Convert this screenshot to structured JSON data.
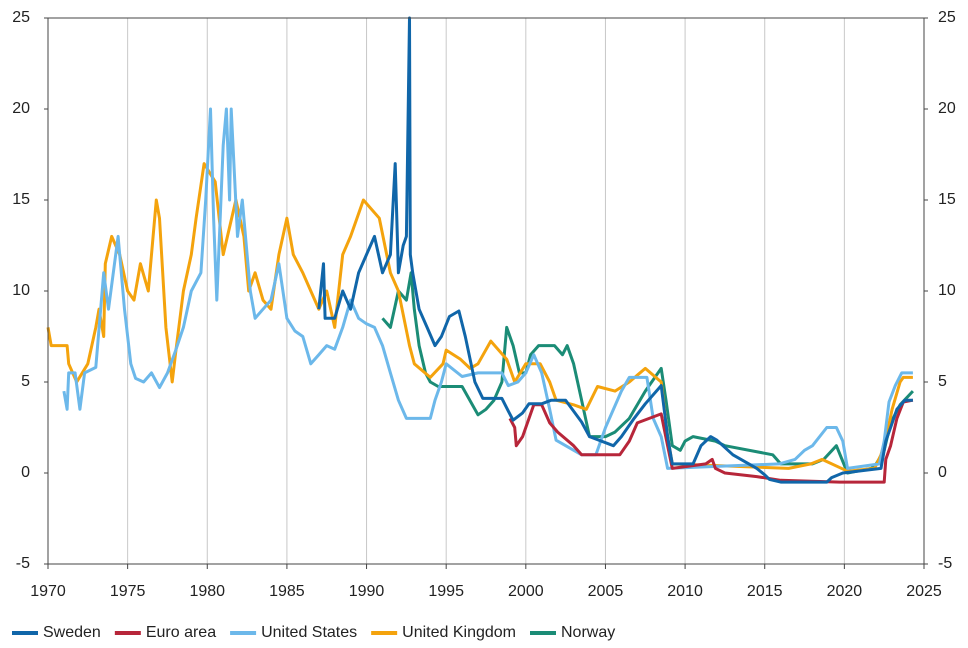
{
  "chart_data": {
    "type": "line",
    "xlim": [
      1970,
      2025
    ],
    "xticks": [
      1970,
      1975,
      1980,
      1985,
      1990,
      1995,
      2000,
      2005,
      2010,
      2015,
      2020,
      2025
    ],
    "ylim": [
      -5,
      25
    ],
    "yticks": [
      -5,
      0,
      5,
      10,
      15,
      20,
      25
    ],
    "right_axis": true,
    "grid": "x",
    "legend": "bottom",
    "series": [
      {
        "name": "Sweden",
        "color": "#1066a9",
        "x": [
          1987.0,
          1987.3,
          1987.4,
          1988,
          1988.5,
          1989,
          1989.5,
          1990,
          1990.5,
          1991,
          1991.5,
          1991.8,
          1992,
          1992.3,
          1992.5,
          1992.7,
          1992.75,
          1992.9,
          1993.3,
          1993.8,
          1994.3,
          1994.7,
          1995.2,
          1995.8,
          1996.2,
          1996.8,
          1997.3,
          1998.5,
          1998.9,
          1999.2,
          1999.8,
          2000.2,
          2001,
          2001.6,
          2002.5,
          2003.5,
          2004,
          2005.5,
          2006,
          2006.8,
          2007.5,
          2008.5,
          2008.9,
          2009.2,
          2010.5,
          2011,
          2011.6,
          2012,
          2013,
          2014.5,
          2015,
          2015.3,
          2016,
          2018.9,
          2019.2,
          2019.9,
          2022.3,
          2022.6,
          2022.9,
          2023.3,
          2023.8,
          2024.3
        ],
        "values": [
          9,
          11.5,
          8.5,
          8.5,
          10,
          9,
          11,
          12,
          13,
          11,
          12,
          17,
          11,
          12.5,
          13,
          25,
          12,
          11,
          9,
          8,
          7,
          7.5,
          8.6,
          8.9,
          7.5,
          5,
          4.1,
          4.1,
          3.4,
          2.9,
          3.3,
          3.8,
          3.8,
          4,
          4,
          2.8,
          2,
          1.5,
          2,
          3,
          3.8,
          4.8,
          2,
          0.5,
          0.5,
          1.5,
          2,
          1.8,
          1,
          0.25,
          -0.1,
          -0.35,
          -0.5,
          -0.5,
          -0.25,
          0,
          0.25,
          1.75,
          2.5,
          3.5,
          4,
          4
        ]
      },
      {
        "name": "Euro area",
        "color": "#b7263a",
        "x": [
          1999,
          1999.3,
          1999.4,
          1999.8,
          2000,
          2000.5,
          2001,
          2001.5,
          2002,
          2003,
          2003.5,
          2005.9,
          2006.5,
          2007,
          2008.5,
          2008.9,
          2009.2,
          2011.3,
          2011.7,
          2011.9,
          2012.5,
          2014.5,
          2016,
          2019.7,
          2022.5,
          2022.6,
          2022.9,
          2023.3,
          2023.7,
          2024.3
        ],
        "values": [
          3,
          2.5,
          1.5,
          2,
          2.5,
          3.75,
          3.75,
          2.75,
          2.25,
          1.5,
          1,
          1,
          1.75,
          2.75,
          3.25,
          1.5,
          0.25,
          0.5,
          0.75,
          0.25,
          0,
          -0.2,
          -0.4,
          -0.5,
          -0.5,
          0.75,
          1.5,
          3,
          3.9,
          4
        ]
      },
      {
        "name": "United States",
        "color": "#6cb8ea",
        "x": [
          1971,
          1971.2,
          1971.3,
          1971.7,
          1972,
          1972.3,
          1973,
          1973.5,
          1973.8,
          1974.4,
          1974.8,
          1975.2,
          1975.5,
          1976,
          1976.5,
          1977,
          1977.5,
          1978,
          1978.5,
          1979,
          1979.6,
          1979.9,
          1980.2,
          1980.4,
          1980.6,
          1981,
          1981.2,
          1981.4,
          1981.5,
          1981.9,
          1982.2,
          1982.7,
          1983,
          1983.5,
          1984,
          1984.5,
          1985,
          1985.5,
          1986,
          1986.5,
          1987,
          1987.5,
          1988,
          1988.5,
          1989,
          1989.5,
          1990,
          1990.5,
          1991,
          1991.5,
          1992,
          1992.5,
          1993,
          1994,
          1994.3,
          1994.7,
          1995,
          1996,
          1997,
          1998.5,
          1998.9,
          1999.5,
          2000,
          2000.5,
          2001,
          2001.5,
          2001.9,
          2002.9,
          2003.5,
          2004.4,
          2005,
          2006,
          2006.5,
          2007.6,
          2008,
          2008.5,
          2008.9,
          2015.9,
          2016.9,
          2017.5,
          2018,
          2018.9,
          2019.5,
          2019.9,
          2020.2,
          2022.2,
          2022.5,
          2022.8,
          2023.2,
          2023.6,
          2024.3
        ],
        "values": [
          4.5,
          3.5,
          5.5,
          5.5,
          3.5,
          5.5,
          5.8,
          11,
          9,
          13,
          9,
          6,
          5.2,
          5,
          5.5,
          4.7,
          5.5,
          6.7,
          8,
          10,
          11,
          15,
          20,
          14,
          9.5,
          18,
          20,
          15,
          20,
          13,
          15,
          10,
          8.5,
          9,
          9.5,
          11.5,
          8.5,
          7.8,
          7.5,
          6,
          6.5,
          7,
          6.8,
          8,
          9.5,
          8.5,
          8.2,
          8,
          7,
          5.5,
          4,
          3,
          3,
          3,
          4,
          5,
          6,
          5.3,
          5.5,
          5.5,
          4.8,
          5,
          5.5,
          6.5,
          5.5,
          3.5,
          1.8,
          1.3,
          1,
          1,
          2.5,
          4.5,
          5.25,
          5.25,
          3,
          2,
          0.25,
          0.5,
          0.75,
          1.25,
          1.5,
          2.5,
          2.5,
          1.75,
          0.25,
          0.5,
          1.75,
          3.9,
          4.8,
          5.5,
          5.5
        ]
      },
      {
        "name": "United Kingdom",
        "color": "#f4a30d",
        "x": [
          1970,
          1970.2,
          1971.2,
          1971.3,
          1971.8,
          1972.5,
          1973,
          1973.2,
          1973.5,
          1973.6,
          1974,
          1974.5,
          1975,
          1975.4,
          1975.8,
          1976.3,
          1976.8,
          1977,
          1977.4,
          1977.8,
          1978,
          1978.5,
          1979,
          1979.3,
          1979.8,
          1980.5,
          1981,
          1981.8,
          1982.3,
          1982.6,
          1983,
          1983.5,
          1984,
          1984.5,
          1985,
          1985.4,
          1986,
          1986.5,
          1987,
          1987.5,
          1988,
          1988.5,
          1989,
          1989.8,
          1990.8,
          1991.5,
          1992,
          1992.7,
          1993,
          1994,
          1994.8,
          1995,
          1995.9,
          1996.5,
          1997,
          1997.8,
          1998.8,
          1999.3,
          2000,
          2000.9,
          2001.5,
          2001.9,
          2003,
          2003.8,
          2004.5,
          2005.6,
          2006.5,
          2007.5,
          2008.5,
          2008.9,
          2009.2,
          2016.5,
          2017.9,
          2018.6,
          2020.2,
          2021.9,
          2022.3,
          2022.7,
          2023,
          2023.5,
          2023.7,
          2024.3
        ],
        "values": [
          8,
          7,
          7,
          6,
          5,
          6,
          8,
          9,
          7.5,
          11.5,
          13,
          12,
          10,
          9.5,
          11.5,
          10,
          15,
          14,
          8,
          5,
          6.5,
          10,
          12,
          14,
          17,
          16,
          12,
          15,
          13,
          10,
          11,
          9.5,
          9,
          12,
          14,
          12,
          11,
          10,
          9,
          10,
          8,
          12,
          13,
          15,
          14,
          11,
          10,
          7,
          6,
          5.25,
          6,
          6.75,
          6.25,
          5.75,
          6,
          7.25,
          6.25,
          5,
          6,
          6,
          5,
          4,
          3.75,
          3.5,
          4.75,
          4.5,
          5,
          5.75,
          5,
          2,
          0.5,
          0.25,
          0.5,
          0.75,
          0.1,
          0.25,
          1,
          2.25,
          3.5,
          5,
          5.25,
          5.25
        ]
      },
      {
        "name": "Norway",
        "color": "#1b8c76",
        "x": [
          1991,
          1991.5,
          1992,
          1992.5,
          1992.8,
          1993,
          1993.3,
          1993.7,
          1994,
          1994.5,
          1996,
          1997,
          1997.5,
          1998,
          1998.5,
          1998.8,
          1999.2,
          1999.6,
          2000,
          2000.3,
          2000.8,
          2001.8,
          2002.3,
          2002.6,
          2003,
          2003.5,
          2004,
          2005,
          2005.6,
          2006.5,
          2007.5,
          2008.5,
          2008.8,
          2009.2,
          2009.7,
          2010,
          2010.5,
          2011.9,
          2012.5,
          2015.5,
          2016,
          2018,
          2018.7,
          2019.5,
          2020.2,
          2021.7,
          2022,
          2022.5,
          2022.9,
          2023.5,
          2024.3
        ],
        "values": [
          8.5,
          8,
          10,
          9.5,
          11,
          9,
          7,
          5.5,
          5,
          4.75,
          4.75,
          3.2,
          3.5,
          4,
          5,
          8,
          7,
          5.5,
          5.5,
          6.5,
          7,
          7,
          6.5,
          7,
          6,
          4,
          2,
          2,
          2.25,
          3,
          4.5,
          5.75,
          4,
          1.5,
          1.25,
          1.75,
          2,
          1.75,
          1.5,
          1,
          0.5,
          0.5,
          0.75,
          1.5,
          0,
          0.25,
          0.5,
          1.25,
          2.75,
          3.75,
          4.5
        ]
      }
    ]
  }
}
